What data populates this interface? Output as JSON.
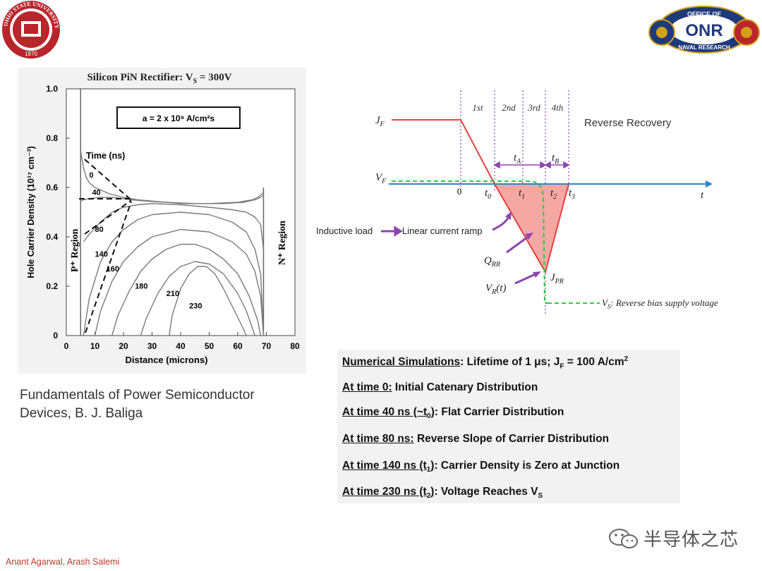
{
  "logos": {
    "osu_text": "OHIO STATE UNIVERSITY",
    "osu_year": "1870",
    "onr_text_top": "OFFICE OF",
    "onr_text_bottom": "NAVAL RESEARCH",
    "onr_mark": "ONR"
  },
  "chart_data": {
    "type": "line",
    "title_main": "Silicon PiN Rectifier: V",
    "title_sub": "S",
    "title_tail": " = 300V",
    "annotation": "a = 2 x 10⁹ A/cm²s",
    "xlabel": "Distance   (microns)",
    "ylabel": "Hole Carrier Density  (10¹⁷ cm⁻³)",
    "xlim": [
      0,
      80
    ],
    "ylim": [
      0,
      1.0
    ],
    "xticks": [
      "0",
      "10",
      "20",
      "30",
      "40",
      "50",
      "60",
      "70",
      "80"
    ],
    "yticks": [
      "0",
      "0.2",
      "0.4",
      "0.6",
      "0.8",
      "1.0"
    ],
    "legend_title": "Time (ns)",
    "region_left": "P⁺ Region",
    "region_right": "N⁺ Region",
    "series": [
      {
        "label": "0",
        "x": [
          5,
          6,
          7,
          8,
          10,
          12,
          15,
          20,
          25,
          30,
          40,
          50,
          60,
          65,
          67,
          68,
          69
        ],
        "y": [
          0.75,
          0.68,
          0.64,
          0.62,
          0.6,
          0.59,
          0.575,
          0.56,
          0.55,
          0.545,
          0.535,
          0.535,
          0.54,
          0.55,
          0.56,
          0.57,
          0.58
        ]
      },
      {
        "label": "40",
        "x": [
          5,
          6,
          8,
          12,
          16,
          20,
          23,
          28,
          35,
          45,
          55,
          62,
          66,
          68,
          69
        ],
        "y": [
          0.545,
          0.55,
          0.555,
          0.56,
          0.56,
          0.555,
          0.55,
          0.545,
          0.54,
          0.535,
          0.535,
          0.54,
          0.55,
          0.56,
          0.57
        ]
      },
      {
        "label": "80",
        "x": [
          6,
          8,
          12,
          16,
          20,
          25,
          30,
          40,
          50,
          58,
          63,
          66,
          68,
          69
        ],
        "y": [
          0.38,
          0.41,
          0.46,
          0.5,
          0.52,
          0.53,
          0.535,
          0.53,
          0.52,
          0.51,
          0.5,
          0.48,
          0.45,
          0.35
        ]
      },
      {
        "label": "140",
        "x": [
          6,
          8,
          12,
          16,
          20,
          25,
          30,
          40,
          50,
          58,
          63,
          66,
          68,
          69
        ],
        "y": [
          0.0,
          0.15,
          0.3,
          0.38,
          0.43,
          0.47,
          0.49,
          0.5,
          0.49,
          0.46,
          0.42,
          0.35,
          0.25,
          0.0
        ]
      },
      {
        "label": "160",
        "x": [
          10,
          12,
          16,
          20,
          25,
          30,
          40,
          50,
          58,
          63,
          66,
          68,
          69
        ],
        "y": [
          0.0,
          0.1,
          0.22,
          0.3,
          0.36,
          0.4,
          0.43,
          0.42,
          0.38,
          0.33,
          0.26,
          0.16,
          0.0
        ]
      },
      {
        "label": "180",
        "x": [
          16,
          18,
          22,
          26,
          30,
          35,
          40,
          45,
          50,
          55,
          60,
          64,
          67,
          68
        ],
        "y": [
          0.0,
          0.08,
          0.18,
          0.26,
          0.31,
          0.35,
          0.37,
          0.37,
          0.35,
          0.31,
          0.25,
          0.16,
          0.06,
          0.0
        ]
      },
      {
        "label": "210",
        "x": [
          26,
          28,
          32,
          36,
          40,
          45,
          50,
          55,
          60,
          63,
          66
        ],
        "y": [
          0.0,
          0.07,
          0.17,
          0.24,
          0.28,
          0.3,
          0.29,
          0.25,
          0.17,
          0.1,
          0.0
        ]
      },
      {
        "label": "230",
        "x": [
          36,
          37,
          40,
          43,
          46,
          49,
          52,
          55,
          58,
          61,
          63
        ],
        "y": [
          0.0,
          0.08,
          0.19,
          0.25,
          0.28,
          0.28,
          0.25,
          0.19,
          0.12,
          0.05,
          0.0
        ]
      }
    ]
  },
  "rr_diagram": {
    "title": "Reverse Recovery",
    "intervals": [
      "1st",
      "2nd",
      "3rd",
      "4th"
    ],
    "jf": "J",
    "jf_sub": "F",
    "vf": "V",
    "vf_sub": "F",
    "t_axis": "t",
    "zero": "0",
    "t0": "t",
    "t0_sub": "0",
    "t1": "t",
    "t1_sub": "1",
    "t2": "t",
    "t2_sub": "2",
    "t3": "t",
    "t3_sub": "3",
    "ta": "t",
    "ta_sub": "A",
    "tb": "t",
    "tb_sub": "B",
    "inductive_load": "Inductive load",
    "linear_ramp": "Linear current ramp",
    "qrr": "Q",
    "qrr_sub": "RR",
    "jpr": "J",
    "jpr_sub": "PR",
    "vr": "V",
    "vr_sub": "R",
    "vr_tail": "(t)",
    "vs": "V",
    "vs_sub": "S",
    "vs_desc": ": Reverse bias supply voltage",
    "colors": {
      "current": "#e8413c",
      "voltage": "#2ecc40",
      "axis": "#2e86c1",
      "markers": "#8e44ad",
      "area": "#f4a7a3"
    }
  },
  "citation": {
    "line1": "Fundamentals of Power Semiconductor",
    "line2": "Devices, B. J. Baliga"
  },
  "notes": {
    "n0_u": "Numerical Simulations",
    "n0_rest": ": Lifetime of 1 μs; J",
    "n0_sub": "F",
    "n0_tail": " = 100 A/cm",
    "n0_sup": "2",
    "n1_u": "At time 0:",
    "n1_rest": "  Initial Catenary Distribution",
    "n2_u": "At time 40 ns (~t",
    "n2_sub": "0",
    "n2_u2": ")",
    "n2_rest": ":  Flat Carrier Distribution",
    "n3_u": "At time 80 ns:",
    "n3_rest": "  Reverse Slope of Carrier Distribution",
    "n4_u": "At time 140 ns (t",
    "n4_sub": "1",
    "n4_u2": ")",
    "n4_rest": ":  Carrier Density is Zero at Junction",
    "n5_u": "At time 230 ns (t",
    "n5_sub": "2",
    "n5_u2": ")",
    "n5_rest": ":  Voltage Reaches V",
    "n5_sub2": "S"
  },
  "footer": {
    "authors": "Anant Agarwal, Arash Salemi",
    "wechat": "半导体之芯"
  }
}
